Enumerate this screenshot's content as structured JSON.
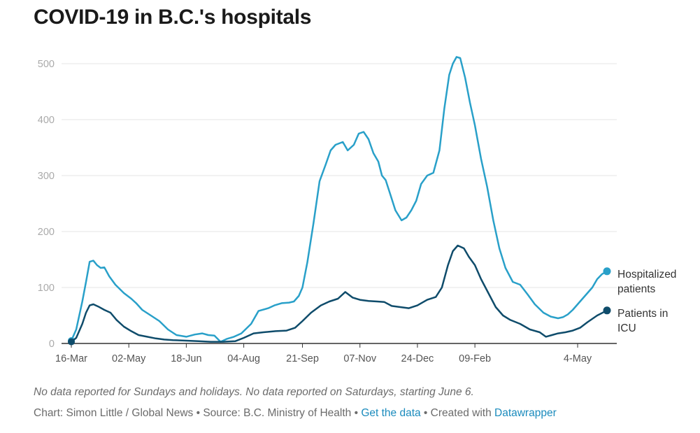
{
  "title": "COVID-19 in B.C.'s hospitals",
  "notes": "No data reported for Sundays and holidays. No data reported on Saturdays, starting June 6.",
  "byline": {
    "chart": "Chart: Simon Little / Global News",
    "sep1": " • ",
    "source": "Source: B.C. Ministry of Health",
    "sep2": " • ",
    "get_data": "Get the data",
    "sep3": " • ",
    "created_with": "Created with ",
    "tool": "Datawrapper"
  },
  "colors": {
    "hospitalized": "#29a0c9",
    "icu": "#0f4c6b",
    "grid": "#e4e4e4",
    "axis": "#333333",
    "link": "#1b8bbd"
  },
  "chart_data": {
    "type": "line",
    "x_start": "2020-03-16",
    "x_end": "2021-05-28",
    "ylim": [
      0,
      520
    ],
    "y_ticks": [
      0,
      100,
      200,
      300,
      400,
      500
    ],
    "x_tick_labels": [
      {
        "date": "2020-03-16",
        "label": "16-Mar"
      },
      {
        "date": "2020-05-02",
        "label": "02-May"
      },
      {
        "date": "2020-06-18",
        "label": "18-Jun"
      },
      {
        "date": "2020-08-04",
        "label": "04-Aug"
      },
      {
        "date": "2020-09-21",
        "label": "21-Sep"
      },
      {
        "date": "2020-11-07",
        "label": "07-Nov"
      },
      {
        "date": "2020-12-24",
        "label": "24-Dec"
      },
      {
        "date": "2021-02-09",
        "label": "09-Feb"
      },
      {
        "date": "2021-05-04",
        "label": "4-May"
      }
    ],
    "series": [
      {
        "name": "Hospitalized patients",
        "name_lines": [
          "Hospitalized",
          "patients"
        ],
        "points": [
          [
            "2020-03-16",
            5
          ],
          [
            "2020-03-20",
            25
          ],
          [
            "2020-03-25",
            75
          ],
          [
            "2020-03-28",
            110
          ],
          [
            "2020-03-31",
            146
          ],
          [
            "2020-04-03",
            148
          ],
          [
            "2020-04-06",
            140
          ],
          [
            "2020-04-09",
            135
          ],
          [
            "2020-04-12",
            136
          ],
          [
            "2020-04-16",
            120
          ],
          [
            "2020-04-21",
            105
          ],
          [
            "2020-04-28",
            90
          ],
          [
            "2020-05-04",
            80
          ],
          [
            "2020-05-08",
            72
          ],
          [
            "2020-05-13",
            60
          ],
          [
            "2020-05-20",
            50
          ],
          [
            "2020-05-27",
            40
          ],
          [
            "2020-06-03",
            25
          ],
          [
            "2020-06-10",
            15
          ],
          [
            "2020-06-18",
            12
          ],
          [
            "2020-06-25",
            16
          ],
          [
            "2020-07-01",
            18
          ],
          [
            "2020-07-06",
            15
          ],
          [
            "2020-07-11",
            14
          ],
          [
            "2020-07-16",
            3
          ],
          [
            "2020-07-21",
            8
          ],
          [
            "2020-07-27",
            12
          ],
          [
            "2020-08-02",
            18
          ],
          [
            "2020-08-10",
            35
          ],
          [
            "2020-08-16",
            58
          ],
          [
            "2020-08-24",
            63
          ],
          [
            "2020-08-29",
            68
          ],
          [
            "2020-09-04",
            72
          ],
          [
            "2020-09-10",
            73
          ],
          [
            "2020-09-14",
            75
          ],
          [
            "2020-09-18",
            85
          ],
          [
            "2020-09-21",
            100
          ],
          [
            "2020-09-25",
            145
          ],
          [
            "2020-09-30",
            215
          ],
          [
            "2020-10-05",
            290
          ],
          [
            "2020-10-10",
            320
          ],
          [
            "2020-10-14",
            345
          ],
          [
            "2020-10-18",
            355
          ],
          [
            "2020-10-24",
            360
          ],
          [
            "2020-10-28",
            345
          ],
          [
            "2020-11-02",
            355
          ],
          [
            "2020-11-06",
            375
          ],
          [
            "2020-11-10",
            378
          ],
          [
            "2020-11-14",
            365
          ],
          [
            "2020-11-18",
            340
          ],
          [
            "2020-11-22",
            325
          ],
          [
            "2020-11-25",
            300
          ],
          [
            "2020-11-28",
            292
          ],
          [
            "2020-12-02",
            265
          ],
          [
            "2020-12-06",
            238
          ],
          [
            "2020-12-11",
            220
          ],
          [
            "2020-12-15",
            225
          ],
          [
            "2020-12-19",
            238
          ],
          [
            "2020-12-23",
            255
          ],
          [
            "2020-12-27",
            285
          ],
          [
            "2021-01-01",
            300
          ],
          [
            "2021-01-06",
            305
          ],
          [
            "2021-01-11",
            345
          ],
          [
            "2021-01-15",
            420
          ],
          [
            "2021-01-19",
            480
          ],
          [
            "2021-01-22",
            500
          ],
          [
            "2021-01-25",
            512
          ],
          [
            "2021-01-28",
            510
          ],
          [
            "2021-02-01",
            475
          ],
          [
            "2021-02-05",
            430
          ],
          [
            "2021-02-09",
            390
          ],
          [
            "2021-02-14",
            330
          ],
          [
            "2021-02-19",
            280
          ],
          [
            "2021-02-24",
            220
          ],
          [
            "2021-03-01",
            170
          ],
          [
            "2021-03-06",
            135
          ],
          [
            "2021-03-12",
            110
          ],
          [
            "2021-03-18",
            105
          ],
          [
            "2021-03-24",
            88
          ],
          [
            "2021-03-30",
            70
          ],
          [
            "2021-04-06",
            55
          ],
          [
            "2021-04-12",
            48
          ],
          [
            "2021-04-18",
            45
          ],
          [
            "2021-04-22",
            47
          ],
          [
            "2021-04-26",
            52
          ],
          [
            "2021-04-30",
            60
          ],
          [
            "2021-05-04",
            70
          ],
          [
            "2021-05-08",
            80
          ],
          [
            "2021-05-12",
            90
          ],
          [
            "2021-05-16",
            100
          ],
          [
            "2021-05-20",
            115
          ],
          [
            "2021-05-24",
            124
          ],
          [
            "2021-05-28",
            129
          ]
        ]
      },
      {
        "name": "Patients in ICU",
        "name_lines": [
          "Patients in",
          "ICU"
        ],
        "points": [
          [
            "2020-03-16",
            3
          ],
          [
            "2020-03-20",
            10
          ],
          [
            "2020-03-25",
            35
          ],
          [
            "2020-03-28",
            55
          ],
          [
            "2020-03-31",
            68
          ],
          [
            "2020-04-03",
            70
          ],
          [
            "2020-04-07",
            66
          ],
          [
            "2020-04-12",
            60
          ],
          [
            "2020-04-17",
            55
          ],
          [
            "2020-04-22",
            42
          ],
          [
            "2020-04-28",
            30
          ],
          [
            "2020-05-04",
            22
          ],
          [
            "2020-05-10",
            15
          ],
          [
            "2020-05-17",
            12
          ],
          [
            "2020-05-24",
            9
          ],
          [
            "2020-05-31",
            7
          ],
          [
            "2020-06-07",
            6
          ],
          [
            "2020-06-18",
            5
          ],
          [
            "2020-06-28",
            4
          ],
          [
            "2020-07-08",
            3
          ],
          [
            "2020-07-18",
            3
          ],
          [
            "2020-07-28",
            4
          ],
          [
            "2020-08-04",
            10
          ],
          [
            "2020-08-12",
            18
          ],
          [
            "2020-08-20",
            20
          ],
          [
            "2020-08-30",
            22
          ],
          [
            "2020-09-08",
            23
          ],
          [
            "2020-09-15",
            28
          ],
          [
            "2020-09-21",
            40
          ],
          [
            "2020-09-28",
            55
          ],
          [
            "2020-10-06",
            68
          ],
          [
            "2020-10-13",
            75
          ],
          [
            "2020-10-20",
            80
          ],
          [
            "2020-10-26",
            92
          ],
          [
            "2020-11-01",
            82
          ],
          [
            "2020-11-07",
            78
          ],
          [
            "2020-11-14",
            76
          ],
          [
            "2020-11-21",
            75
          ],
          [
            "2020-11-27",
            74
          ],
          [
            "2020-12-03",
            67
          ],
          [
            "2020-12-10",
            65
          ],
          [
            "2020-12-17",
            63
          ],
          [
            "2020-12-24",
            68
          ],
          [
            "2021-01-01",
            78
          ],
          [
            "2021-01-08",
            83
          ],
          [
            "2021-01-13",
            100
          ],
          [
            "2021-01-18",
            140
          ],
          [
            "2021-01-22",
            165
          ],
          [
            "2021-01-26",
            175
          ],
          [
            "2021-01-31",
            170
          ],
          [
            "2021-02-04",
            155
          ],
          [
            "2021-02-09",
            140
          ],
          [
            "2021-02-14",
            115
          ],
          [
            "2021-02-20",
            90
          ],
          [
            "2021-02-26",
            65
          ],
          [
            "2021-03-04",
            50
          ],
          [
            "2021-03-10",
            42
          ],
          [
            "2021-03-18",
            35
          ],
          [
            "2021-03-26",
            25
          ],
          [
            "2021-04-03",
            20
          ],
          [
            "2021-04-08",
            12
          ],
          [
            "2021-04-13",
            15
          ],
          [
            "2021-04-18",
            18
          ],
          [
            "2021-04-24",
            20
          ],
          [
            "2021-04-30",
            23
          ],
          [
            "2021-05-06",
            28
          ],
          [
            "2021-05-12",
            38
          ],
          [
            "2021-05-20",
            50
          ],
          [
            "2021-05-28",
            59
          ]
        ]
      }
    ]
  }
}
